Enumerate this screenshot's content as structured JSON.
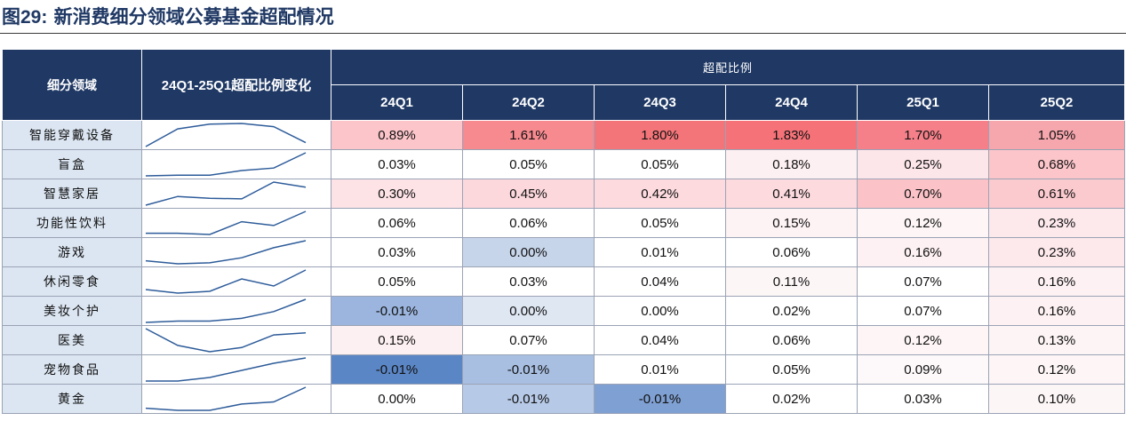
{
  "title": {
    "prefix": "图",
    "number": "29:",
    "text": "新消费细分领域公募基金超配情况"
  },
  "header": {
    "col_category": "细分领域",
    "col_change": "24Q1-25Q1超配比例变化",
    "col_group": "超配比例",
    "quarters": [
      "24Q1",
      "24Q2",
      "24Q3",
      "24Q4",
      "25Q1",
      "25Q2"
    ]
  },
  "chart_data": {
    "type": "table",
    "columns": [
      "细分领域",
      "24Q1",
      "24Q2",
      "24Q3",
      "24Q4",
      "25Q1",
      "25Q2"
    ],
    "rows": [
      {
        "label": "智能穿戴设备",
        "cells": [
          "0.89%",
          "1.61%",
          "1.80%",
          "1.83%",
          "1.70%",
          "1.05%"
        ],
        "values": [
          0.89,
          1.61,
          1.8,
          1.83,
          1.7,
          1.05
        ],
        "colors": [
          "#fbc5ca",
          "#f68a8f",
          "#f47579",
          "#f47278",
          "#f5808a",
          "#f6a6ad"
        ]
      },
      {
        "label": "盲盒",
        "cells": [
          "0.03%",
          "0.05%",
          "0.05%",
          "0.18%",
          "0.25%",
          "0.68%"
        ],
        "values": [
          0.03,
          0.05,
          0.05,
          0.18,
          0.25,
          0.68
        ],
        "colors": [
          "#ffffff",
          "#ffffff",
          "#ffffff",
          "#fdf0f2",
          "#fde6ea",
          "#fbc5ca"
        ]
      },
      {
        "label": "智慧家居",
        "cells": [
          "0.30%",
          "0.45%",
          "0.42%",
          "0.41%",
          "0.70%",
          "0.61%"
        ],
        "values": [
          0.3,
          0.45,
          0.42,
          0.41,
          0.7,
          0.61
        ],
        "colors": [
          "#fde2e6",
          "#fcd8dc",
          "#fcdade",
          "#fcdade",
          "#fbc3c8",
          "#fbcacf"
        ]
      },
      {
        "label": "功能性饮料",
        "cells": [
          "0.06%",
          "0.06%",
          "0.05%",
          "0.15%",
          "0.12%",
          "0.23%"
        ],
        "values": [
          0.06,
          0.06,
          0.05,
          0.15,
          0.12,
          0.23
        ],
        "colors": [
          "#ffffff",
          "#ffffff",
          "#ffffff",
          "#fdf2f4",
          "#fdf5f6",
          "#fde8ec"
        ]
      },
      {
        "label": "游戏",
        "cells": [
          "0.03%",
          "0.00%",
          "0.01%",
          "0.06%",
          "0.16%",
          "0.23%"
        ],
        "values": [
          0.03,
          0.0,
          0.01,
          0.06,
          0.16,
          0.23
        ],
        "colors": [
          "#ffffff",
          "#c7d5ea",
          "#ffffff",
          "#ffffff",
          "#fdf1f3",
          "#fde8ec"
        ]
      },
      {
        "label": "休闲零食",
        "cells": [
          "0.05%",
          "0.03%",
          "0.04%",
          "0.11%",
          "0.07%",
          "0.16%"
        ],
        "values": [
          0.05,
          0.03,
          0.04,
          0.11,
          0.07,
          0.16
        ],
        "colors": [
          "#ffffff",
          "#ffffff",
          "#ffffff",
          "#fdf6f7",
          "#ffffff",
          "#fdf1f3"
        ]
      },
      {
        "label": "美妆个护",
        "cells": [
          "-0.01%",
          "0.00%",
          "0.00%",
          "0.02%",
          "0.07%",
          "0.16%"
        ],
        "values": [
          -0.01,
          0.0,
          0.0,
          0.02,
          0.07,
          0.16
        ],
        "colors": [
          "#9bb5de",
          "#dfe7f3",
          "#ffffff",
          "#ffffff",
          "#ffffff",
          "#fdf1f3"
        ]
      },
      {
        "label": "医美",
        "cells": [
          "0.15%",
          "0.07%",
          "0.04%",
          "0.06%",
          "0.12%",
          "0.13%"
        ],
        "values": [
          0.15,
          0.07,
          0.04,
          0.06,
          0.12,
          0.13
        ],
        "colors": [
          "#fdf0f2",
          "#ffffff",
          "#ffffff",
          "#ffffff",
          "#fdf5f6",
          "#fdf4f5"
        ]
      },
      {
        "label": "宠物食品",
        "cells": [
          "-0.01%",
          "-0.01%",
          "0.01%",
          "0.05%",
          "0.09%",
          "0.12%"
        ],
        "values": [
          -0.01,
          -0.01,
          0.01,
          0.05,
          0.09,
          0.12
        ],
        "colors": [
          "#5b86c5",
          "#a8bfe2",
          "#ffffff",
          "#ffffff",
          "#fdf8f9",
          "#fdf5f6"
        ]
      },
      {
        "label": "黄金",
        "cells": [
          "0.00%",
          "-0.01%",
          "-0.01%",
          "0.02%",
          "0.03%",
          "0.10%"
        ],
        "values": [
          0.0,
          -0.01,
          -0.01,
          0.02,
          0.03,
          0.1
        ],
        "colors": [
          "#ffffff",
          "#b6c9e6",
          "#7fa0d2",
          "#ffffff",
          "#ffffff",
          "#fdf6f7"
        ]
      }
    ],
    "sparkline_quarters": [
      "24Q1",
      "24Q2",
      "24Q3",
      "24Q4",
      "25Q1",
      "25Q2"
    ],
    "sparkline_color": "#2e5c9a"
  }
}
